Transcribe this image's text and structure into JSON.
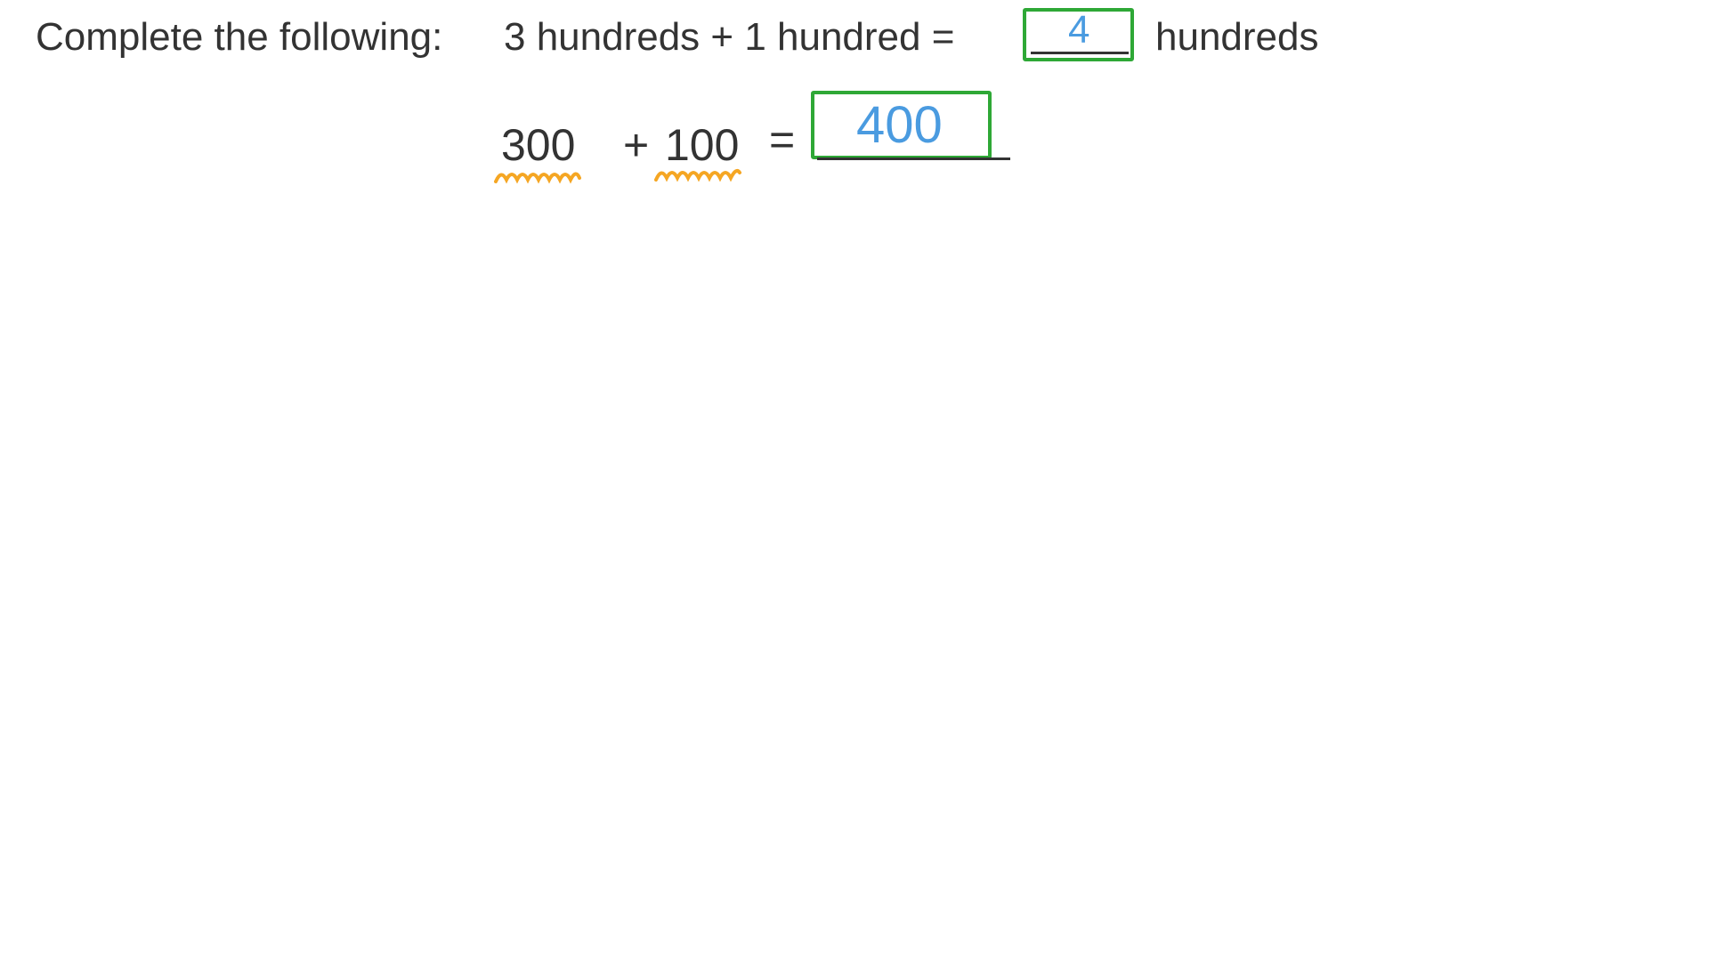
{
  "question": {
    "prompt": "Complete the following:",
    "expression": "3 hundreds + 1 hundred =",
    "answer": "4",
    "unit": "hundreds"
  },
  "working": {
    "term1": "300",
    "plus": "+",
    "term2": "100",
    "equals": "=",
    "answer": "400"
  },
  "colors": {
    "ink": "#333333",
    "box": "#2ea836",
    "answer": "#4a9be0",
    "highlight": "#f5a623"
  }
}
